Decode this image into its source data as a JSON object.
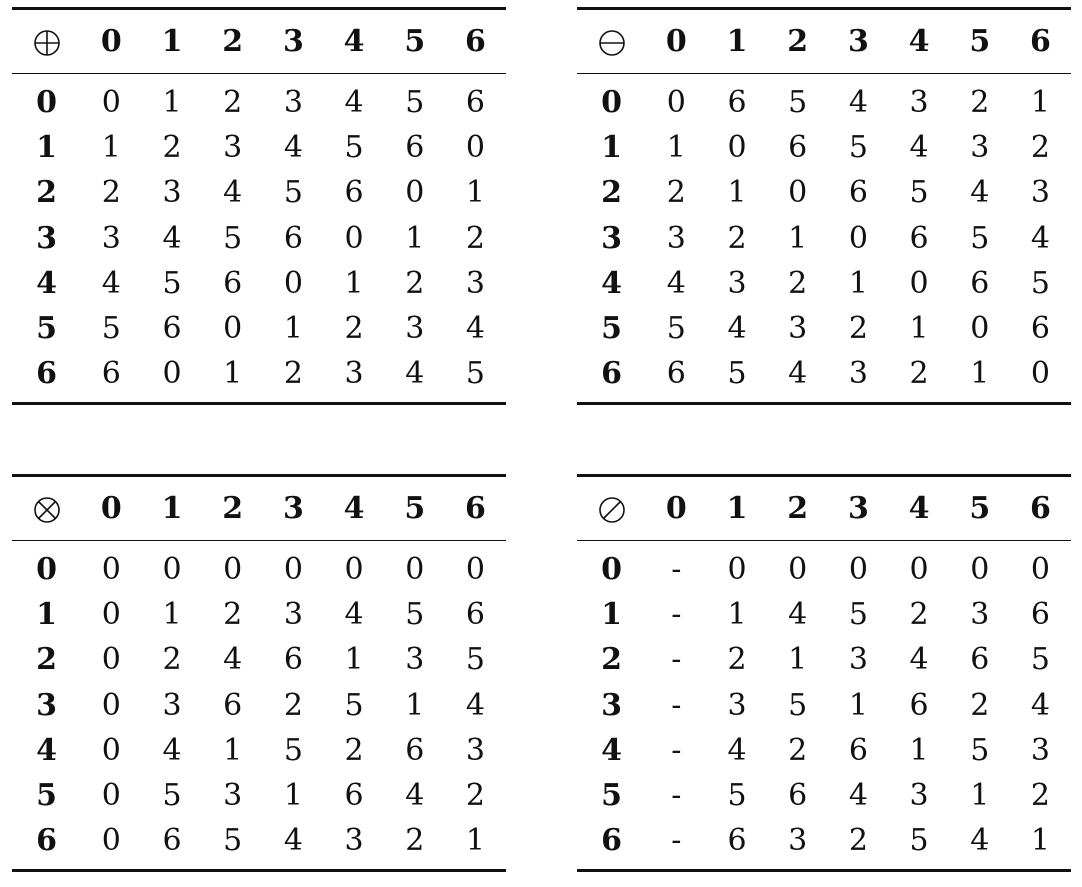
{
  "tables": [
    {
      "id": "add",
      "symbol": "⊕",
      "symbol_name": "circled-plus",
      "header": [
        "0",
        "1",
        "2",
        "3",
        "4",
        "5",
        "6"
      ],
      "rows": [
        {
          "label": "0",
          "cells": [
            "0",
            "1",
            "2",
            "3",
            "4",
            "5",
            "6"
          ]
        },
        {
          "label": "1",
          "cells": [
            "1",
            "2",
            "3",
            "4",
            "5",
            "6",
            "0"
          ]
        },
        {
          "label": "2",
          "cells": [
            "2",
            "3",
            "4",
            "5",
            "6",
            "0",
            "1"
          ]
        },
        {
          "label": "3",
          "cells": [
            "3",
            "4",
            "5",
            "6",
            "0",
            "1",
            "2"
          ]
        },
        {
          "label": "4",
          "cells": [
            "4",
            "5",
            "6",
            "0",
            "1",
            "2",
            "3"
          ]
        },
        {
          "label": "5",
          "cells": [
            "5",
            "6",
            "0",
            "1",
            "2",
            "3",
            "4"
          ]
        },
        {
          "label": "6",
          "cells": [
            "6",
            "0",
            "1",
            "2",
            "3",
            "4",
            "5"
          ]
        }
      ]
    },
    {
      "id": "sub",
      "symbol": "⊖",
      "symbol_name": "circled-minus",
      "header": [
        "0",
        "1",
        "2",
        "3",
        "4",
        "5",
        "6"
      ],
      "rows": [
        {
          "label": "0",
          "cells": [
            "0",
            "6",
            "5",
            "4",
            "3",
            "2",
            "1"
          ]
        },
        {
          "label": "1",
          "cells": [
            "1",
            "0",
            "6",
            "5",
            "4",
            "3",
            "2"
          ]
        },
        {
          "label": "2",
          "cells": [
            "2",
            "1",
            "0",
            "6",
            "5",
            "4",
            "3"
          ]
        },
        {
          "label": "3",
          "cells": [
            "3",
            "2",
            "1",
            "0",
            "6",
            "5",
            "4"
          ]
        },
        {
          "label": "4",
          "cells": [
            "4",
            "3",
            "2",
            "1",
            "0",
            "6",
            "5"
          ]
        },
        {
          "label": "5",
          "cells": [
            "5",
            "4",
            "3",
            "2",
            "1",
            "0",
            "6"
          ]
        },
        {
          "label": "6",
          "cells": [
            "6",
            "5",
            "4",
            "3",
            "2",
            "1",
            "0"
          ]
        }
      ]
    },
    {
      "id": "mul",
      "symbol": "⊗",
      "symbol_name": "circled-times",
      "header": [
        "0",
        "1",
        "2",
        "3",
        "4",
        "5",
        "6"
      ],
      "rows": [
        {
          "label": "0",
          "cells": [
            "0",
            "0",
            "0",
            "0",
            "0",
            "0",
            "0"
          ]
        },
        {
          "label": "1",
          "cells": [
            "0",
            "1",
            "2",
            "3",
            "4",
            "5",
            "6"
          ]
        },
        {
          "label": "2",
          "cells": [
            "0",
            "2",
            "4",
            "6",
            "1",
            "3",
            "5"
          ]
        },
        {
          "label": "3",
          "cells": [
            "0",
            "3",
            "6",
            "2",
            "5",
            "1",
            "4"
          ]
        },
        {
          "label": "4",
          "cells": [
            "0",
            "4",
            "1",
            "5",
            "2",
            "6",
            "3"
          ]
        },
        {
          "label": "5",
          "cells": [
            "0",
            "5",
            "3",
            "1",
            "6",
            "4",
            "2"
          ]
        },
        {
          "label": "6",
          "cells": [
            "0",
            "6",
            "5",
            "4",
            "3",
            "2",
            "1"
          ]
        }
      ]
    },
    {
      "id": "div",
      "symbol": "⊘",
      "symbol_name": "circled-slash",
      "header": [
        "0",
        "1",
        "2",
        "3",
        "4",
        "5",
        "6"
      ],
      "rows": [
        {
          "label": "0",
          "cells": [
            "-",
            "0",
            "0",
            "0",
            "0",
            "0",
            "0"
          ]
        },
        {
          "label": "1",
          "cells": [
            "-",
            "1",
            "4",
            "5",
            "2",
            "3",
            "6"
          ]
        },
        {
          "label": "2",
          "cells": [
            "-",
            "2",
            "1",
            "3",
            "4",
            "6",
            "5"
          ]
        },
        {
          "label": "3",
          "cells": [
            "-",
            "3",
            "5",
            "1",
            "6",
            "2",
            "4"
          ]
        },
        {
          "label": "4",
          "cells": [
            "-",
            "4",
            "2",
            "6",
            "1",
            "5",
            "3"
          ]
        },
        {
          "label": "5",
          "cells": [
            "-",
            "5",
            "6",
            "4",
            "3",
            "1",
            "2"
          ]
        },
        {
          "label": "6",
          "cells": [
            "-",
            "6",
            "3",
            "2",
            "5",
            "4",
            "1"
          ]
        }
      ]
    }
  ]
}
